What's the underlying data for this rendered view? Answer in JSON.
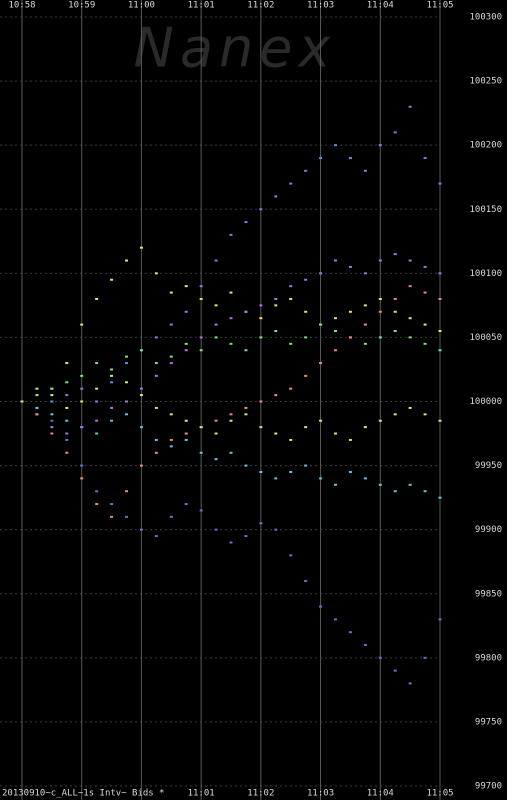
{
  "chart_data": {
    "type": "scatter",
    "watermark": "Nanex",
    "footer": "20130910~c_ALL~1s Intv~ Bids *",
    "xlim": [
      658,
      665
    ],
    "xticks": [
      {
        "value": 658,
        "label": "10:58"
      },
      {
        "value": 659,
        "label": "10:59"
      },
      {
        "value": 660,
        "label": "11:00"
      },
      {
        "value": 661,
        "label": "11:01"
      },
      {
        "value": 662,
        "label": "11:02"
      },
      {
        "value": 663,
        "label": "11:03"
      },
      {
        "value": 664,
        "label": "11:04"
      },
      {
        "value": 665,
        "label": "11:05"
      }
    ],
    "ylim": [
      99700,
      100300
    ],
    "yticks": [
      99700,
      99750,
      99800,
      99850,
      99900,
      99950,
      100000,
      100050,
      100100,
      100150,
      100200,
      100250,
      100300
    ],
    "grid": true,
    "x": [
      658,
      658.25,
      658.5,
      658.75,
      659,
      659.25,
      659.5,
      659.75,
      660,
      660.25,
      660.5,
      660.75,
      661,
      661.25,
      661.5,
      661.75,
      662,
      662.25,
      662.5,
      662.75,
      663,
      663.25,
      663.5,
      663.75,
      664,
      664.25,
      664.5,
      664.75,
      665
    ],
    "series": [
      {
        "color": "#f0e068",
        "values": [
          100000,
          100005,
          100010,
          100030,
          100060,
          100080,
          100095,
          100110,
          100120,
          100100,
          100085,
          100090,
          100080,
          100075,
          100085,
          100070,
          100065,
          100075,
          100080,
          100070,
          100060,
          100065,
          100070,
          100075,
          100080,
          100070,
          100065,
          100060,
          100055
        ]
      },
      {
        "color": "#6f86e8",
        "values": [
          100000,
          99995,
          100000,
          100005,
          100010,
          100000,
          100015,
          100030,
          100040,
          100050,
          100060,
          100070,
          100090,
          100110,
          100130,
          100140,
          100150,
          100160,
          100170,
          100180,
          100190,
          100200,
          100190,
          100180,
          100200,
          100210,
          100230,
          100190,
          100170
        ]
      },
      {
        "color": "#5d74d8",
        "values": [
          100000,
          99990,
          99985,
          99970,
          99950,
          99930,
          99920,
          99910,
          99900,
          99895,
          99910,
          99920,
          99915,
          99900,
          99890,
          99895,
          99905,
          99900,
          99880,
          99860,
          99840,
          99830,
          99820,
          99810,
          99800,
          99790,
          99780,
          99800,
          99830
        ]
      },
      {
        "color": "#5ec4e4",
        "values": [
          100000,
          99995,
          99990,
          99985,
          99980,
          99975,
          99985,
          99990,
          99980,
          99970,
          99965,
          99970,
          99960,
          99955,
          99960,
          99950,
          99945,
          99940,
          99945,
          99950,
          99940,
          99935,
          99945,
          99940,
          99935,
          99930,
          99935,
          99930,
          99925
        ]
      },
      {
        "color": "#7ee27e",
        "values": [
          100000,
          100005,
          100010,
          100015,
          100020,
          100030,
          100025,
          100035,
          100040,
          100030,
          100035,
          100045,
          100040,
          100050,
          100045,
          100040,
          100050,
          100055,
          100045,
          100050,
          100060,
          100055,
          100050,
          100045,
          100050,
          100055,
          100050,
          100045,
          100040
        ]
      },
      {
        "color": "#a874e4",
        "values": [
          100000,
          99990,
          99980,
          99975,
          99980,
          99985,
          99995,
          100000,
          100010,
          100020,
          100030,
          100040,
          100050,
          100060,
          100065,
          100070,
          100075,
          100080,
          100090,
          100095,
          100100,
          100110,
          100105,
          100100,
          100110,
          100115,
          100110,
          100105,
          100100
        ]
      },
      {
        "color": "#f08a70",
        "values": [
          100000,
          99990,
          99975,
          99960,
          99940,
          99920,
          99910,
          99930,
          99950,
          99960,
          99970,
          99975,
          99980,
          99985,
          99990,
          99995,
          100000,
          100005,
          100010,
          100020,
          100030,
          100040,
          100050,
          100060,
          100070,
          100080,
          100090,
          100085,
          100080
        ]
      },
      {
        "color": "#c4f070",
        "values": [
          100000,
          100010,
          100005,
          99995,
          100000,
          100010,
          100020,
          100015,
          100005,
          99995,
          99990,
          99985,
          99980,
          99975,
          99985,
          99990,
          99980,
          99975,
          99970,
          99980,
          99985,
          99975,
          99970,
          99980,
          99985,
          99990,
          99995,
          99990,
          99985
        ]
      }
    ]
  }
}
